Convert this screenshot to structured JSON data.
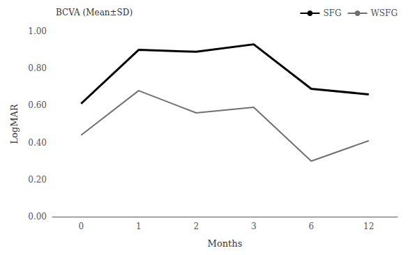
{
  "chart_data": {
    "type": "line",
    "categories": [
      "0",
      "1",
      "2",
      "3",
      "6",
      "12"
    ],
    "series": [
      {
        "name": "SFG",
        "color": "#000000",
        "values": [
          0.61,
          0.9,
          0.89,
          0.93,
          0.69,
          0.66
        ]
      },
      {
        "name": "WSFG",
        "color": "#707070",
        "values": [
          0.44,
          0.68,
          0.56,
          0.59,
          0.3,
          0.41
        ]
      }
    ],
    "x_label": "Months",
    "y_label": "LogMAR",
    "annotation": "BCVA (Mean±SD)",
    "ylim": [
      0.0,
      1.0
    ],
    "yticks": [
      {
        "value": 0.0,
        "label": "0.00"
      },
      {
        "value": 0.2,
        "label": "0.20"
      },
      {
        "value": 0.4,
        "label": "0.40"
      },
      {
        "value": 0.6,
        "label": "0.60"
      },
      {
        "value": 0.8,
        "label": "0.80"
      },
      {
        "value": 1.0,
        "label": "1.00"
      }
    ],
    "grid": false,
    "legend": "upper right"
  }
}
